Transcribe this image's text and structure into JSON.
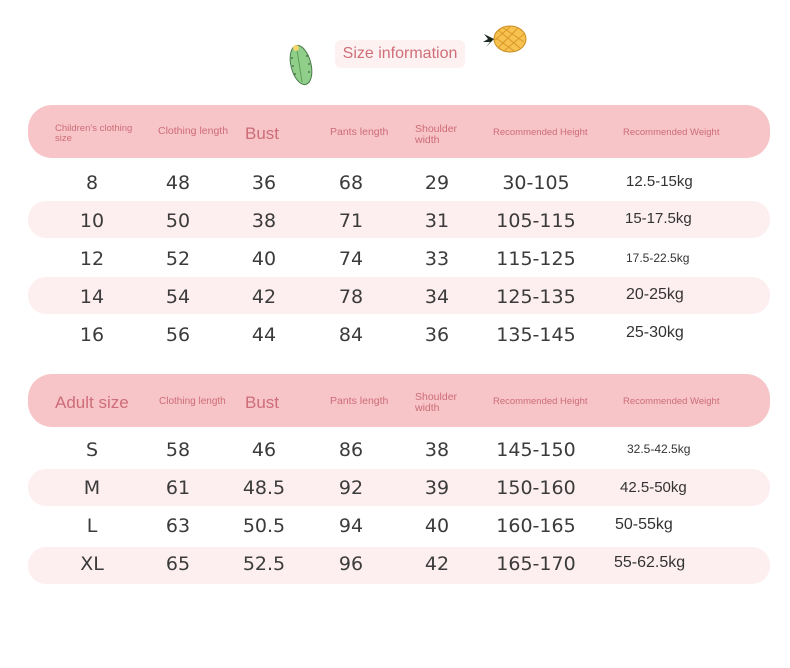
{
  "title": "Size information",
  "icons": {
    "left": "cactus-icon",
    "right": "pineapple-icon"
  },
  "colors": {
    "header_bar": "#f7c4c7",
    "row_band": "#fdeef0",
    "header_text": "#cd6d79",
    "title_text": "#cf6f78"
  },
  "children_table": {
    "headers": [
      "Children's clothing size",
      "Clothing length",
      "Bust",
      "Pants length",
      "Shoulder width",
      "Recommended Height",
      "Recommended Weight"
    ],
    "rows": [
      [
        "8",
        "48",
        "36",
        "68",
        "29",
        "30-105",
        "12.5-15kg"
      ],
      [
        "10",
        "50",
        "38",
        "71",
        "31",
        "105-115",
        "15-17.5kg"
      ],
      [
        "12",
        "52",
        "40",
        "74",
        "33",
        "115-125",
        "17.5-22.5kg"
      ],
      [
        "14",
        "54",
        "42",
        "78",
        "34",
        "125-135",
        "20-25kg"
      ],
      [
        "16",
        "56",
        "44",
        "84",
        "36",
        "135-145",
        "25-30kg"
      ]
    ]
  },
  "adult_table": {
    "headers": [
      "Adult size",
      "Clothing length",
      "Bust",
      "Pants length",
      "Shoulder width",
      "Recommended Height",
      "Recommended Weight"
    ],
    "rows": [
      [
        "S",
        "58",
        "46",
        "86",
        "38",
        "145-150",
        "32.5-42.5kg"
      ],
      [
        "M",
        "61",
        "48.5",
        "92",
        "39",
        "150-160",
        "42.5-50kg"
      ],
      [
        "L",
        "63",
        "50.5",
        "94",
        "40",
        "160-165",
        "50-55kg"
      ],
      [
        "XL",
        "65",
        "52.5",
        "96",
        "42",
        "165-170",
        "55-62.5kg"
      ]
    ]
  }
}
